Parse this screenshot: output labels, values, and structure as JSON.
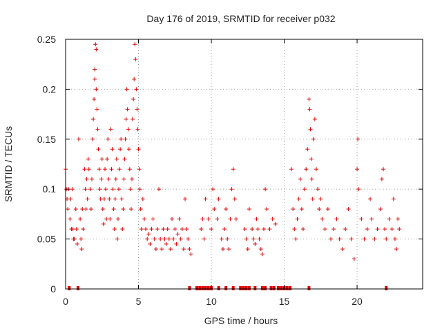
{
  "chart_data": {
    "type": "scatter",
    "title": "Day 176 of 2019, SRMTID for receiver p032",
    "xlabel": "GPS time / hours",
    "ylabel": "SRMTID / TECUs",
    "xlim": [
      0,
      24.5
    ],
    "ylim": [
      0,
      0.25
    ],
    "x_ticks": [
      "0",
      "5",
      "10",
      "15",
      "20"
    ],
    "x_tick_values": [
      0,
      5,
      10,
      15,
      20
    ],
    "y_ticks": [
      "0",
      "0.05",
      "0.1",
      "0.15",
      "0.2",
      "0.25"
    ],
    "y_tick_values": [
      0,
      0.05,
      0.1,
      0.15,
      0.2,
      0.25
    ],
    "grid": true,
    "marker": "+",
    "color": "#e00000",
    "series": [
      {
        "name": "SRMTID",
        "points": [
          [
            0.0,
            0.12
          ],
          [
            0.05,
            0.1
          ],
          [
            0.1,
            0.09
          ],
          [
            0.15,
            0.08
          ],
          [
            0.2,
            0.1
          ],
          [
            0.3,
            0.07
          ],
          [
            0.35,
            0.09
          ],
          [
            0.4,
            0.06
          ],
          [
            0.45,
            0.1
          ],
          [
            0.5,
            0.06
          ],
          [
            0.55,
            0.05
          ],
          [
            0.6,
            0.05
          ],
          [
            0.7,
            0.08
          ],
          [
            0.75,
            0.06
          ],
          [
            0.8,
            0.045
          ],
          [
            0.9,
            0.15
          ],
          [
            1.0,
            0.07
          ],
          [
            1.05,
            0.05
          ],
          [
            1.1,
            0.04
          ],
          [
            1.15,
            0.08
          ],
          [
            1.2,
            0.06
          ],
          [
            1.3,
            0.12
          ],
          [
            1.35,
            0.1
          ],
          [
            1.4,
            0.08
          ],
          [
            1.45,
            0.11
          ],
          [
            1.5,
            0.09
          ],
          [
            1.55,
            0.13
          ],
          [
            1.6,
            0.12
          ],
          [
            1.7,
            0.1
          ],
          [
            1.75,
            0.08
          ],
          [
            1.8,
            0.11
          ],
          [
            1.85,
            0.15
          ],
          [
            1.9,
            0.17
          ],
          [
            1.95,
            0.19
          ],
          [
            2.0,
            0.21
          ],
          [
            2.0,
            0.22
          ],
          [
            2.05,
            0.245
          ],
          [
            2.1,
            0.24
          ],
          [
            2.1,
            0.2
          ],
          [
            2.15,
            0.18
          ],
          [
            2.2,
            0.16
          ],
          [
            2.25,
            0.14
          ],
          [
            2.3,
            0.12
          ],
          [
            2.35,
            0.1
          ],
          [
            2.4,
            0.09
          ],
          [
            2.45,
            0.11
          ],
          [
            2.5,
            0.13
          ],
          [
            2.55,
            0.08
          ],
          [
            2.6,
            0.065
          ],
          [
            2.65,
            0.09
          ],
          [
            2.7,
            0.12
          ],
          [
            2.75,
            0.1
          ],
          [
            2.8,
            0.07
          ],
          [
            2.85,
            0.13
          ],
          [
            2.9,
            0.15
          ],
          [
            2.95,
            0.11
          ],
          [
            3.0,
            0.09
          ],
          [
            3.05,
            0.07
          ],
          [
            3.1,
            0.16
          ],
          [
            3.15,
            0.12
          ],
          [
            3.2,
            0.14
          ],
          [
            3.25,
            0.1
          ],
          [
            3.3,
            0.08
          ],
          [
            3.35,
            0.06
          ],
          [
            3.4,
            0.09
          ],
          [
            3.45,
            0.11
          ],
          [
            3.5,
            0.13
          ],
          [
            3.55,
            0.05
          ],
          [
            3.6,
            0.07
          ],
          [
            3.65,
            0.1
          ],
          [
            3.7,
            0.12
          ],
          [
            3.75,
            0.14
          ],
          [
            3.8,
            0.15
          ],
          [
            3.85,
            0.09
          ],
          [
            3.9,
            0.06
          ],
          [
            3.95,
            0.08
          ],
          [
            4.0,
            0.11
          ],
          [
            4.05,
            0.13
          ],
          [
            4.1,
            0.15
          ],
          [
            4.15,
            0.17
          ],
          [
            4.2,
            0.2
          ],
          [
            4.25,
            0.18
          ],
          [
            4.3,
            0.16
          ],
          [
            4.35,
            0.14
          ],
          [
            4.4,
            0.12
          ],
          [
            4.45,
            0.1
          ],
          [
            4.5,
            0.08
          ],
          [
            4.55,
            0.11
          ],
          [
            4.6,
            0.17
          ],
          [
            4.65,
            0.19
          ],
          [
            4.7,
            0.21
          ],
          [
            4.75,
            0.245
          ],
          [
            4.8,
            0.23
          ],
          [
            4.85,
            0.2
          ],
          [
            4.9,
            0.18
          ],
          [
            4.95,
            0.16
          ],
          [
            5.0,
            0.14
          ],
          [
            5.05,
            0.12
          ],
          [
            5.1,
            0.1
          ],
          [
            5.15,
            0.08
          ],
          [
            5.2,
            0.06
          ],
          [
            5.3,
            0.09
          ],
          [
            5.4,
            0.07
          ],
          [
            5.5,
            0.06
          ],
          [
            5.6,
            0.05
          ],
          [
            5.7,
            0.055
          ],
          [
            5.8,
            0.045
          ],
          [
            5.9,
            0.06
          ],
          [
            6.0,
            0.07
          ],
          [
            6.1,
            0.05
          ],
          [
            6.2,
            0.04
          ],
          [
            6.3,
            0.06
          ],
          [
            6.4,
            0.1
          ],
          [
            6.5,
            0.05
          ],
          [
            6.6,
            0.04
          ],
          [
            6.7,
            0.06
          ],
          [
            6.8,
            0.05
          ],
          [
            6.9,
            0.045
          ],
          [
            7.0,
            0.06
          ],
          [
            7.1,
            0.05
          ],
          [
            7.2,
            0.04
          ],
          [
            7.3,
            0.07
          ],
          [
            7.4,
            0.05
          ],
          [
            7.5,
            0.06
          ],
          [
            7.6,
            0.045
          ],
          [
            7.7,
            0.055
          ],
          [
            7.8,
            0.07
          ],
          [
            7.9,
            0.05
          ],
          [
            8.0,
            0.06
          ],
          [
            8.1,
            0.04
          ],
          [
            8.2,
            0.09
          ],
          [
            8.3,
            0.06
          ],
          [
            8.4,
            0.05
          ],
          [
            8.5,
            0.04
          ],
          [
            8.6,
            0.035
          ],
          [
            9.3,
            0.06
          ],
          [
            9.4,
            0.07
          ],
          [
            9.5,
            0.05
          ],
          [
            9.6,
            0.09
          ],
          [
            9.8,
            0.07
          ],
          [
            10.0,
            0.06
          ],
          [
            10.1,
            0.1
          ],
          [
            10.2,
            0.08
          ],
          [
            10.4,
            0.07
          ],
          [
            10.5,
            0.09
          ],
          [
            10.7,
            0.05
          ],
          [
            10.8,
            0.04
          ],
          [
            10.9,
            0.06
          ],
          [
            11.0,
            0.08
          ],
          [
            11.1,
            0.05
          ],
          [
            11.2,
            0.04
          ],
          [
            11.3,
            0.07
          ],
          [
            11.4,
            0.1
          ],
          [
            11.5,
            0.12
          ],
          [
            11.6,
            0.09
          ],
          [
            11.7,
            0.07
          ],
          [
            12.3,
            0.06
          ],
          [
            12.4,
            0.05
          ],
          [
            12.5,
            0.04
          ],
          [
            12.6,
            0.08
          ],
          [
            12.8,
            0.06
          ],
          [
            12.9,
            0.05
          ],
          [
            13.0,
            0.045
          ],
          [
            13.1,
            0.07
          ],
          [
            13.2,
            0.06
          ],
          [
            13.3,
            0.05
          ],
          [
            13.4,
            0.04
          ],
          [
            13.5,
            0.035
          ],
          [
            13.6,
            0.06
          ],
          [
            13.7,
            0.1
          ],
          [
            13.8,
            0.08
          ],
          [
            14.0,
            0.06
          ],
          [
            14.2,
            0.07
          ],
          [
            14.4,
            0.065
          ],
          [
            15.5,
            0.12
          ],
          [
            15.6,
            0.08
          ],
          [
            15.7,
            0.06
          ],
          [
            15.8,
            0.05
          ],
          [
            15.9,
            0.07
          ],
          [
            16.0,
            0.09
          ],
          [
            16.1,
            0.11
          ],
          [
            16.2,
            0.08
          ],
          [
            16.3,
            0.06
          ],
          [
            16.4,
            0.1
          ],
          [
            16.5,
            0.12
          ],
          [
            16.6,
            0.14
          ],
          [
            16.7,
            0.19
          ],
          [
            16.75,
            0.18
          ],
          [
            16.8,
            0.16
          ],
          [
            16.85,
            0.13
          ],
          [
            16.9,
            0.11
          ],
          [
            16.95,
            0.09
          ],
          [
            17.0,
            0.15
          ],
          [
            17.1,
            0.17
          ],
          [
            17.2,
            0.12
          ],
          [
            17.3,
            0.1
          ],
          [
            17.4,
            0.08
          ],
          [
            17.5,
            0.09
          ],
          [
            17.6,
            0.07
          ],
          [
            17.8,
            0.06
          ],
          [
            18.0,
            0.08
          ],
          [
            18.2,
            0.05
          ],
          [
            18.4,
            0.06
          ],
          [
            18.6,
            0.07
          ],
          [
            18.8,
            0.05
          ],
          [
            19.0,
            0.04
          ],
          [
            19.2,
            0.06
          ],
          [
            19.4,
            0.08
          ],
          [
            19.6,
            0.05
          ],
          [
            19.8,
            0.03
          ],
          [
            20.0,
            0.12
          ],
          [
            20.05,
            0.15
          ],
          [
            20.1,
            0.1
          ],
          [
            20.3,
            0.07
          ],
          [
            20.5,
            0.05
          ],
          [
            20.7,
            0.06
          ],
          [
            20.9,
            0.09
          ],
          [
            21.0,
            0.07
          ],
          [
            21.2,
            0.05
          ],
          [
            21.4,
            0.06
          ],
          [
            21.6,
            0.08
          ],
          [
            21.7,
            0.11
          ],
          [
            21.8,
            0.12
          ],
          [
            21.9,
            0.06
          ],
          [
            22.0,
            0.05
          ],
          [
            22.2,
            0.07
          ],
          [
            22.4,
            0.06
          ],
          [
            22.5,
            0.09
          ],
          [
            22.6,
            0.05
          ],
          [
            22.7,
            0.04
          ],
          [
            22.8,
            0.07
          ],
          [
            22.9,
            0.06
          ]
        ]
      }
    ],
    "zero_points_x": [
      0.25,
      0.85,
      8.5,
      9.0,
      9.2,
      9.4,
      9.6,
      9.8,
      10.0,
      10.5,
      11.0,
      11.5,
      12.0,
      12.2,
      12.4,
      12.6,
      13.0,
      13.5,
      13.7,
      14.1,
      14.3,
      14.6,
      14.8,
      15.0,
      15.2,
      15.4,
      16.7,
      22.0
    ]
  }
}
